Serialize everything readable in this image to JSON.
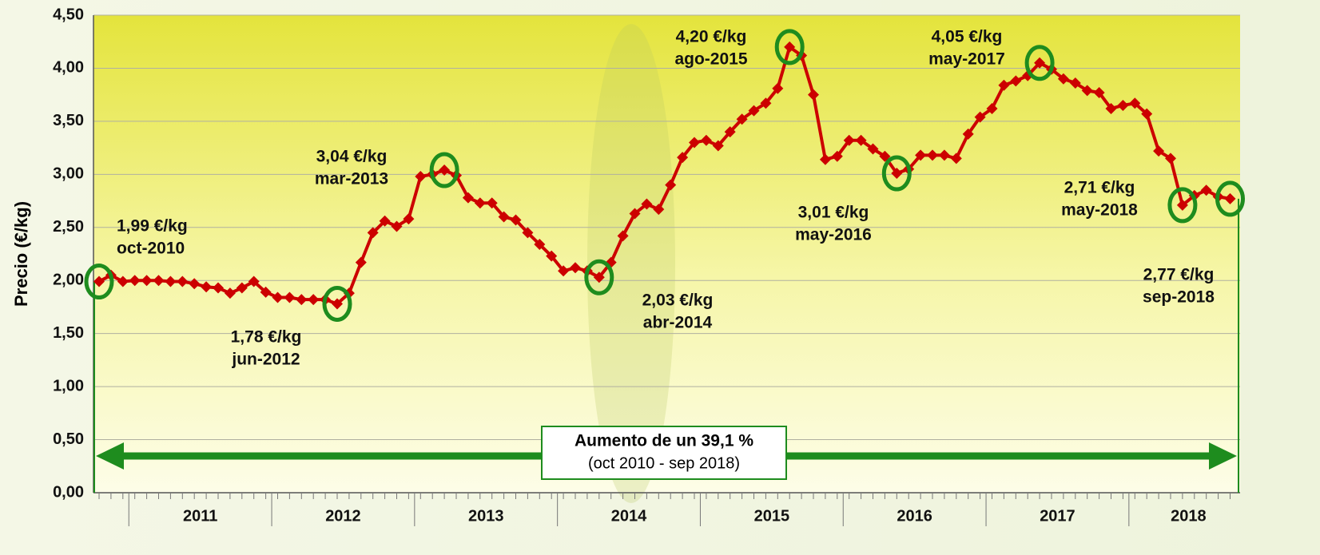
{
  "chart_data": {
    "type": "line",
    "y_label": "Precio (€/kg)",
    "color": "#cc0000",
    "highlight_color": "#1e8c1e",
    "grid": true,
    "categories": [
      null,
      null,
      null,
      null,
      null,
      null,
      null,
      null,
      "2011",
      null,
      null,
      null,
      null,
      null,
      null,
      null,
      null,
      null,
      null,
      null,
      "2012",
      null,
      null,
      null,
      null,
      null,
      null,
      null,
      null,
      null,
      null,
      null,
      "2013",
      null,
      null,
      null,
      null,
      null,
      null,
      null,
      null,
      null,
      null,
      null,
      "2014",
      null,
      null,
      null,
      null,
      null,
      null,
      null,
      null,
      null,
      null,
      null,
      "2015",
      null,
      null,
      null,
      null,
      null,
      null,
      null,
      null,
      null,
      null,
      null,
      "2016",
      null,
      null,
      null,
      null,
      null,
      null,
      null,
      null,
      null,
      null,
      null,
      "2017",
      null,
      null,
      null,
      null,
      null,
      null,
      null,
      null,
      null,
      null,
      "2018",
      null,
      null,
      null,
      null
    ],
    "values": [
      1.99,
      2.05,
      1.99,
      2.0,
      2.0,
      2.0,
      1.99,
      1.99,
      1.97,
      1.94,
      1.93,
      1.88,
      1.93,
      1.99,
      1.89,
      1.84,
      1.84,
      1.82,
      1.82,
      1.82,
      1.78,
      1.88,
      2.17,
      2.45,
      2.56,
      2.51,
      2.58,
      2.98,
      3.0,
      3.04,
      2.99,
      2.78,
      2.73,
      2.73,
      2.6,
      2.57,
      2.45,
      2.34,
      2.23,
      2.09,
      2.12,
      2.09,
      2.03,
      2.17,
      2.42,
      2.63,
      2.72,
      2.67,
      2.9,
      3.16,
      3.3,
      3.32,
      3.27,
      3.4,
      3.52,
      3.6,
      3.67,
      3.81,
      4.2,
      4.12,
      3.75,
      3.14,
      3.17,
      3.32,
      3.32,
      3.24,
      3.17,
      3.01,
      3.05,
      3.18,
      3.18,
      3.18,
      3.15,
      3.38,
      3.54,
      3.62,
      3.84,
      3.88,
      3.93,
      4.05,
      3.99,
      3.9,
      3.86,
      3.79,
      3.77,
      3.62,
      3.65,
      3.67,
      3.57,
      3.22,
      3.15,
      2.71,
      2.8,
      2.85,
      2.79,
      2.77
    ],
    "ylim": [
      0,
      4.5
    ],
    "yticks": [
      {
        "value": 0,
        "label": "0,00"
      },
      {
        "value": 0.5,
        "label": "0,50"
      },
      {
        "value": 1,
        "label": "1,00"
      },
      {
        "value": 1.5,
        "label": "1,50"
      },
      {
        "value": 2,
        "label": "2,00"
      },
      {
        "value": 2.5,
        "label": "2,50"
      },
      {
        "value": 3,
        "label": "3,00"
      },
      {
        "value": 3.5,
        "label": "3,50"
      },
      {
        "value": 4,
        "label": "4,00"
      },
      {
        "value": 4.5,
        "label": "4,50"
      }
    ],
    "annotations": [
      {
        "lines": [
          "1,99 €/kg",
          "oct-2010"
        ]
      },
      {
        "lines": [
          "1,78 €/kg",
          "jun-2012"
        ]
      },
      {
        "lines": [
          "3,04 €/kg",
          "mar-2013"
        ]
      },
      {
        "lines": [
          "2,03 €/kg",
          "abr-2014"
        ]
      },
      {
        "lines": [
          "4,20 €/kg",
          "ago-2015"
        ]
      },
      {
        "lines": [
          "3,01 €/kg",
          "may-2016"
        ]
      },
      {
        "lines": [
          "4,05 €/kg",
          "may-2017"
        ]
      },
      {
        "lines": [
          "2,71 €/kg",
          "may-2018"
        ]
      },
      {
        "lines": [
          "2,77 €/kg",
          "sep-2018"
        ]
      }
    ],
    "note": {
      "lines": [
        "Aumento de un 39,1 %",
        "(oct 2010 - sep 2018)"
      ]
    }
  }
}
